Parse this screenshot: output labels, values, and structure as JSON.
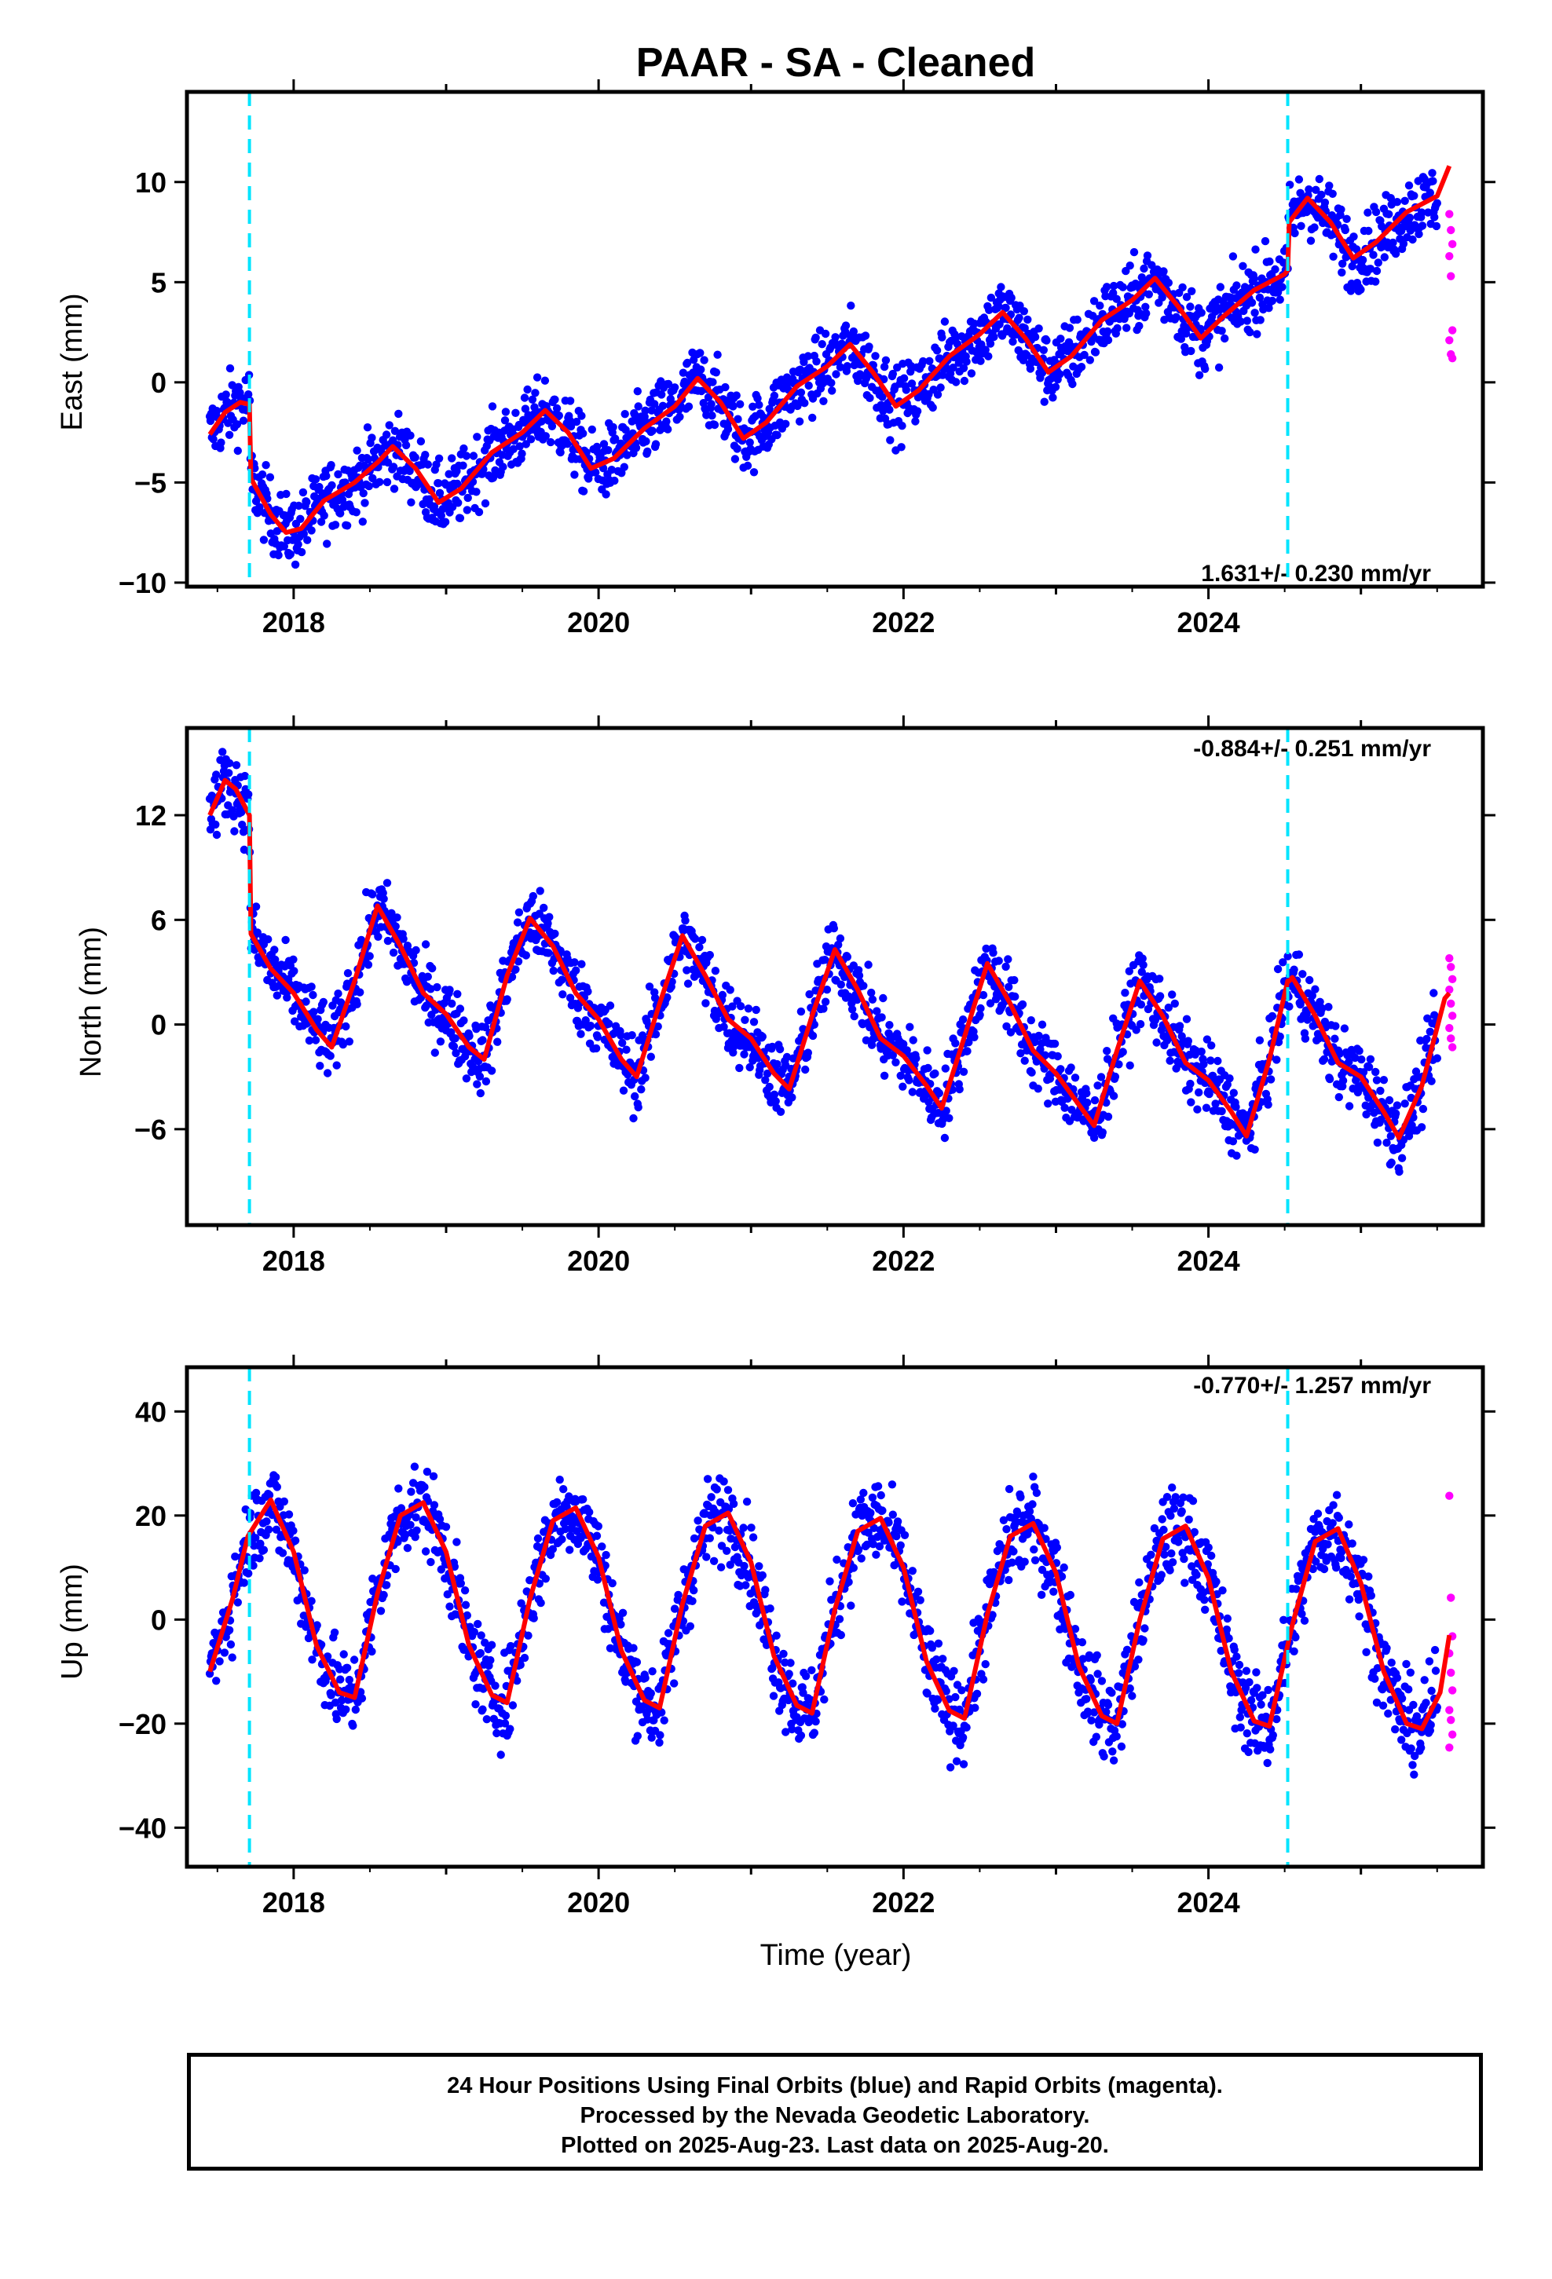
{
  "colors": {
    "final_points": "#0000ff",
    "rapid_points": "#ff00ff",
    "fit_line": "#ff0000",
    "event_lines": "#00e5ff",
    "frame": "#000000"
  },
  "chart_data": [
    {
      "type": "scatter",
      "title": "PAAR  - SA - Cleaned",
      "xlabel": "",
      "ylabel": "East (mm)",
      "xlim": [
        2017.3,
        2025.8
      ],
      "ylim": [
        -10.2,
        14.5
      ],
      "xticks": [
        2018,
        2020,
        2022,
        2024
      ],
      "yticks": [
        -10,
        -5,
        0,
        5,
        10
      ],
      "rate_label": "1.631+/- 0.230 mm/yr",
      "event_lines_x": [
        2017.71,
        2024.52
      ],
      "fit": {
        "name": "model fit",
        "x": [
          2017.45,
          2017.55,
          2017.65,
          2017.71,
          2017.72,
          2017.85,
          2017.95,
          2018.05,
          2018.2,
          2018.4,
          2018.55,
          2018.65,
          2018.8,
          2018.95,
          2019.1,
          2019.3,
          2019.5,
          2019.65,
          2019.8,
          2019.95,
          2020.1,
          2020.3,
          2020.5,
          2020.65,
          2020.8,
          2020.95,
          2021.1,
          2021.3,
          2021.5,
          2021.65,
          2021.8,
          2021.95,
          2022.1,
          2022.3,
          2022.5,
          2022.65,
          2022.8,
          2022.95,
          2023.1,
          2023.3,
          2023.5,
          2023.65,
          2023.8,
          2023.95,
          2024.1,
          2024.3,
          2024.5,
          2024.52,
          2024.53,
          2024.65,
          2024.8,
          2024.95,
          2025.1,
          2025.3,
          2025.5,
          2025.58
        ],
        "y": [
          -2.6,
          -1.5,
          -1.0,
          -1.1,
          -4.8,
          -6.6,
          -7.5,
          -7.3,
          -5.9,
          -5.0,
          -4.0,
          -3.2,
          -4.3,
          -6.0,
          -5.3,
          -3.5,
          -2.5,
          -1.4,
          -2.5,
          -4.3,
          -3.8,
          -2.3,
          -1.2,
          0.2,
          -1.0,
          -2.8,
          -2.0,
          -0.2,
          0.8,
          1.9,
          0.5,
          -1.2,
          -0.4,
          1.3,
          2.4,
          3.5,
          2.2,
          0.5,
          1.3,
          3.1,
          4.1,
          5.2,
          3.8,
          2.2,
          3.3,
          4.6,
          5.4,
          5.6,
          8.0,
          9.2,
          8.0,
          6.2,
          7.0,
          8.5,
          9.3,
          10.8
        ]
      },
      "rapid_points": {
        "x": [
          2025.58,
          2025.59,
          2025.6,
          2025.58,
          2025.59,
          2025.6,
          2025.58,
          2025.59,
          2025.6
        ],
        "y": [
          8.4,
          7.6,
          6.9,
          6.3,
          5.3,
          2.6,
          2.1,
          1.4,
          1.2
        ]
      }
    },
    {
      "type": "scatter",
      "title": "",
      "xlabel": "",
      "ylabel": "North (mm)",
      "xlim": [
        2017.3,
        2025.8
      ],
      "ylim": [
        -11.5,
        17.0
      ],
      "xticks": [
        2018,
        2020,
        2022,
        2024
      ],
      "yticks": [
        -6,
        0,
        6,
        12
      ],
      "rate_label": "-0.884+/- 0.251 mm/yr",
      "event_lines_x": [
        2017.71,
        2024.52
      ],
      "fit": {
        "name": "model fit",
        "x": [
          2017.45,
          2017.55,
          2017.62,
          2017.71,
          2017.72,
          2017.85,
          2018.0,
          2018.15,
          2018.25,
          2018.4,
          2018.55,
          2018.7,
          2018.85,
          2019.0,
          2019.15,
          2019.25,
          2019.4,
          2019.55,
          2019.7,
          2019.85,
          2020.0,
          2020.15,
          2020.25,
          2020.4,
          2020.55,
          2020.7,
          2020.85,
          2021.0,
          2021.15,
          2021.25,
          2021.4,
          2021.55,
          2021.7,
          2021.85,
          2022.0,
          2022.15,
          2022.25,
          2022.4,
          2022.55,
          2022.7,
          2022.85,
          2023.0,
          2023.15,
          2023.25,
          2023.4,
          2023.55,
          2023.7,
          2023.85,
          2024.0,
          2024.15,
          2024.25,
          2024.4,
          2024.52,
          2024.53,
          2024.55,
          2024.7,
          2024.85,
          2025.0,
          2025.15,
          2025.25,
          2025.4,
          2025.55,
          2025.58
        ],
        "y": [
          12.0,
          14.0,
          13.5,
          12.0,
          5.2,
          3.2,
          1.8,
          -0.3,
          -1.3,
          2.5,
          6.8,
          4.5,
          1.8,
          0.6,
          -1.3,
          -2.0,
          2.8,
          6.1,
          4.5,
          1.8,
          0.3,
          -2.0,
          -3.0,
          1.2,
          5.1,
          2.8,
          0.3,
          -0.8,
          -2.8,
          -3.7,
          0.5,
          4.3,
          2.0,
          -0.8,
          -1.8,
          -3.5,
          -4.8,
          -0.7,
          3.5,
          1.2,
          -1.5,
          -2.8,
          -4.6,
          -5.8,
          -1.5,
          2.5,
          0.5,
          -2.2,
          -3.2,
          -5.0,
          -6.4,
          -2.0,
          2.5,
          2.5,
          2.7,
          0.5,
          -2.2,
          -3.0,
          -5.0,
          -6.5,
          -3.5,
          1.5,
          1.8
        ]
      },
      "rapid_points": {
        "x": [
          2025.58,
          2025.59,
          2025.6,
          2025.58,
          2025.59,
          2025.6,
          2025.58,
          2025.59,
          2025.6
        ],
        "y": [
          3.8,
          3.3,
          2.6,
          2.0,
          1.2,
          0.5,
          -0.2,
          -0.8,
          -1.3
        ]
      }
    },
    {
      "type": "scatter",
      "title": "",
      "xlabel": "Time (year)",
      "ylabel": "Up (mm)",
      "xlim": [
        2017.3,
        2025.8
      ],
      "ylim": [
        -47.5,
        48.5
      ],
      "xticks": [
        2018,
        2020,
        2022,
        2024
      ],
      "yticks": [
        -40,
        -20,
        0,
        20,
        40
      ],
      "rate_label": "-0.770+/- 1.257 mm/yr",
      "event_lines_x": [
        2017.71,
        2024.52
      ],
      "fit": {
        "name": "model fit",
        "x": [
          2017.45,
          2017.6,
          2017.7,
          2017.85,
          2018.0,
          2018.15,
          2018.3,
          2018.4,
          2018.55,
          2018.7,
          2018.85,
          2019.0,
          2019.15,
          2019.3,
          2019.4,
          2019.55,
          2019.7,
          2019.85,
          2020.0,
          2020.15,
          2020.3,
          2020.4,
          2020.55,
          2020.7,
          2020.85,
          2021.0,
          2021.15,
          2021.3,
          2021.4,
          2021.55,
          2021.7,
          2021.85,
          2022.0,
          2022.15,
          2022.3,
          2022.4,
          2022.55,
          2022.7,
          2022.85,
          2023.0,
          2023.15,
          2023.3,
          2023.4,
          2023.55,
          2023.7,
          2023.85,
          2024.0,
          2024.15,
          2024.3,
          2024.4,
          2024.55,
          2024.7,
          2024.85,
          2025.0,
          2025.15,
          2025.3,
          2025.4,
          2025.52,
          2025.58
        ],
        "y": [
          -10.0,
          4.0,
          16.0,
          23.0,
          13.0,
          -5.0,
          -14.0,
          -15.0,
          5.0,
          20.0,
          22.5,
          13.0,
          -5.0,
          -14.5,
          -16.0,
          4.0,
          19.0,
          21.5,
          12.0,
          -6.0,
          -15.5,
          -17.0,
          3.0,
          18.0,
          20.5,
          11.0,
          -7.0,
          -16.5,
          -18.0,
          2.0,
          17.0,
          19.5,
          10.0,
          -8.0,
          -17.5,
          -19.0,
          1.0,
          16.0,
          18.5,
          9.0,
          -9.0,
          -18.5,
          -20.0,
          0.0,
          15.5,
          18.0,
          8.0,
          -10.0,
          -19.5,
          -20.5,
          -1.0,
          15.0,
          17.5,
          7.0,
          -10.0,
          -20.0,
          -21.0,
          -14.0,
          -3.0
        ]
      },
      "rapid_points": {
        "x": [
          2025.58,
          2025.59,
          2025.6,
          2025.58,
          2025.59,
          2025.6,
          2025.58,
          2025.59,
          2025.6,
          2025.58
        ],
        "y": [
          23.8,
          4.2,
          -3.2,
          -6.5,
          -10.2,
          -13.6,
          -17.4,
          -19.3,
          -22.1,
          -24.6
        ]
      }
    }
  ],
  "footnote": {
    "line1": "24 Hour Positions Using Final Orbits (blue) and Rapid Orbits (magenta).",
    "line2": "Processed by the Nevada Geodetic Laboratory.",
    "line3": "Plotted on 2025-Aug-23. Last data on 2025-Aug-20."
  }
}
